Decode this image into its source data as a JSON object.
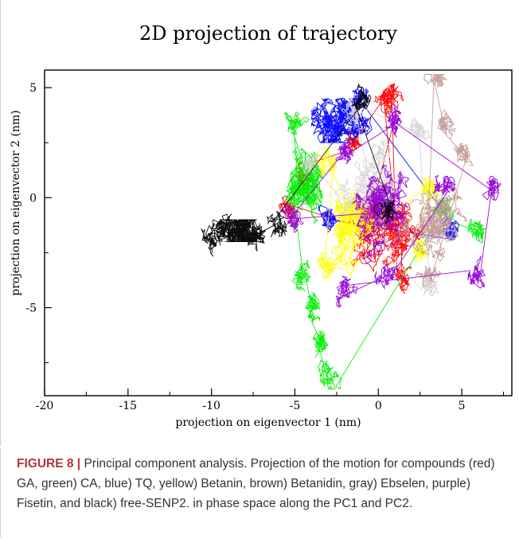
{
  "chart_data": {
    "type": "line",
    "title": "2D projection of trajectory",
    "xlabel": "projection on eigenvector 1 (nm)",
    "ylabel": "projection on eigenvector 2 (nm)",
    "xlim": [
      -20,
      8
    ],
    "ylim": [
      -9,
      5.8
    ],
    "xticks": [
      "-20",
      "-15",
      "-10",
      "-5",
      "0",
      "5"
    ],
    "yticks": [
      "5",
      "0",
      "-5"
    ],
    "grid": false,
    "legend": "none",
    "series": [
      {
        "color": "#ff0000",
        "center": [
          0.3,
          -1.0
        ],
        "spread": [
          3.3,
          3.0
        ],
        "points": [
          [
            -5.3,
            -0.5
          ],
          [
            -4.5,
            1.0
          ],
          [
            -1.5,
            2.5
          ],
          [
            0.5,
            4.8
          ],
          [
            1.2,
            -2.0
          ],
          [
            1.5,
            -3.5
          ],
          [
            1.0,
            4.5
          ],
          [
            -0.8,
            -1.5
          ]
        ]
      },
      {
        "color": "#00ee00",
        "center": [
          -4.5,
          1.2
        ],
        "spread": [
          1.2,
          2.8
        ],
        "points": [
          [
            -5.0,
            3.5
          ],
          [
            -4.3,
            1.5
          ],
          [
            -4.5,
            -3.5
          ],
          [
            -4.0,
            -5.0
          ],
          [
            -3.5,
            -6.5
          ],
          [
            -3.0,
            -8.0
          ],
          [
            4.0,
            -0.5
          ],
          [
            6.0,
            -1.5
          ]
        ]
      },
      {
        "color": "#0000ff",
        "center": [
          -2.0,
          3.5
        ],
        "spread": [
          2.0,
          1.0
        ],
        "points": [
          [
            -2.0,
            4.0
          ],
          [
            -1.0,
            4.5
          ],
          [
            4.5,
            -1.5
          ],
          [
            -3.0,
            -1.0
          ]
        ]
      },
      {
        "color": "#ffff00",
        "center": [
          -1.0,
          -1.0
        ],
        "spread": [
          3.5,
          3.0
        ],
        "points": [
          [
            -3.0,
            1.5
          ],
          [
            -3.0,
            -3.0
          ],
          [
            3.0,
            0.5
          ],
          [
            2.5,
            -2.5
          ]
        ]
      },
      {
        "color": "#c49a95",
        "center": [
          3.5,
          -0.5
        ],
        "spread": [
          2.5,
          3.5
        ],
        "points": [
          [
            3.5,
            5.5
          ],
          [
            4.0,
            3.5
          ],
          [
            5.0,
            2.0
          ],
          [
            3.0,
            -3.5
          ]
        ]
      },
      {
        "color": "#d9d4d4",
        "center": [
          0.0,
          1.0
        ],
        "spread": [
          3.5,
          3.5
        ],
        "points": [
          [
            -1.5,
            4.0
          ],
          [
            2.5,
            3.0
          ],
          [
            3.0,
            -4.0
          ],
          [
            -4.0,
            1.5
          ]
        ]
      },
      {
        "color": "#9400d3",
        "center": [
          0.8,
          -0.3
        ],
        "spread": [
          4.0,
          3.3
        ],
        "points": [
          [
            -5.0,
            -1.0
          ],
          [
            -2.0,
            2.0
          ],
          [
            1.0,
            3.5
          ],
          [
            7.0,
            0.5
          ],
          [
            6.0,
            -3.5
          ],
          [
            -2.0,
            -4.0
          ],
          [
            0.5,
            -3.5
          ],
          [
            4.0,
            0.5
          ]
        ]
      },
      {
        "color": "#000000",
        "center": [
          -8.0,
          -1.5
        ],
        "spread": [
          2.0,
          0.5
        ],
        "points": [
          [
            -10.0,
            -1.8
          ],
          [
            -9.0,
            -1.3
          ],
          [
            -7.5,
            -1.8
          ],
          [
            -6.0,
            -1.2
          ],
          [
            -1.0,
            4.5
          ],
          [
            0.5,
            -0.5
          ]
        ]
      }
    ]
  },
  "caption": {
    "label": "FIGURE 8 |",
    "text": " Principal component analysis. Projection of the motion for compounds (red) GA, green) CA, blue) TQ, yellow) Betanin, brown) Betanidin, gray) Ebselen, purple) Fisetin, and black) free-SENP2. in phase space along the PC1 and PC2."
  }
}
